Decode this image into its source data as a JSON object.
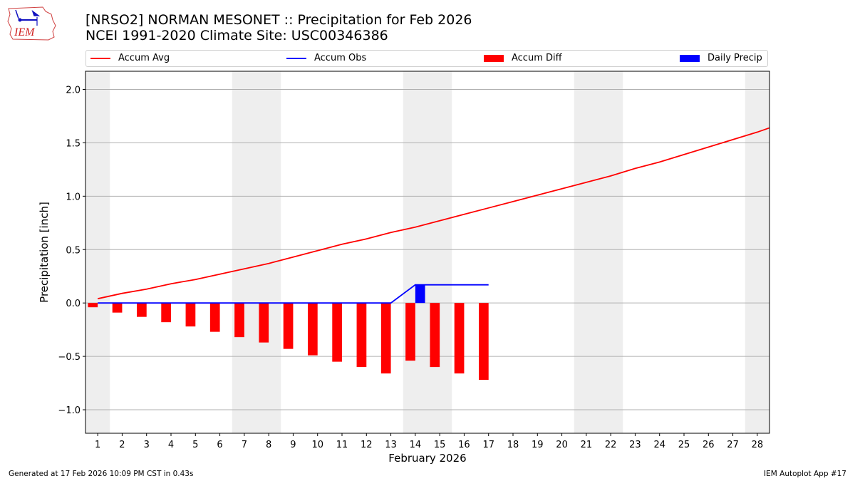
{
  "header": {
    "logo_text": "IEM",
    "title_line1": "[NRSO2] NORMAN MESONET :: Precipitation for Feb 2026",
    "title_line2": "NCEI 1991-2020 Climate Site: USC00346386"
  },
  "legend": {
    "items": [
      {
        "label": "Accum Avg",
        "type": "line",
        "color": "#ff0000"
      },
      {
        "label": "Accum Obs",
        "type": "line",
        "color": "#0000ff"
      },
      {
        "label": "Accum Diff",
        "type": "patch",
        "color": "#ff0000"
      },
      {
        "label": "Daily Precip",
        "type": "patch",
        "color": "#0000ff"
      }
    ]
  },
  "footer": {
    "generated": "Generated at 17 Feb 2026 10:09 PM CST in 0.43s",
    "app": "IEM Autoplot App #17"
  },
  "colors": {
    "avg": "#ff0000",
    "obs": "#0000ff",
    "diff": "#ff0000",
    "daily": "#0000ff",
    "weekend": "#eeeeee",
    "grid": "#b0b0b0"
  },
  "chart_data": {
    "type": "bar",
    "title": "[NRSO2] NORMAN MESONET :: Precipitation for Feb 2026",
    "subtitle": "NCEI 1991-2020 Climate Site: USC00346386",
    "xlabel": "February 2026",
    "ylabel": "Precipitation [inch]",
    "xlim": [
      0.5,
      28.5
    ],
    "ylim": [
      -1.22,
      2.17
    ],
    "yticks": [
      -1.0,
      -0.5,
      0.0,
      0.5,
      1.0,
      1.5,
      2.0
    ],
    "ytick_labels": [
      "−1.0",
      "−0.5",
      "0.0",
      "0.5",
      "1.0",
      "1.5",
      "2.0"
    ],
    "x": [
      1,
      2,
      3,
      4,
      5,
      6,
      7,
      8,
      9,
      10,
      11,
      12,
      13,
      14,
      15,
      16,
      17,
      18,
      19,
      20,
      21,
      22,
      23,
      24,
      25,
      26,
      27,
      28
    ],
    "grid": "y",
    "legend_position": "top",
    "weekend_spans": [
      [
        0.5,
        1.5
      ],
      [
        6.5,
        8.5
      ],
      [
        13.5,
        15.5
      ],
      [
        20.5,
        22.5
      ],
      [
        27.5,
        28.5
      ]
    ],
    "series": [
      {
        "name": "Accum Avg",
        "kind": "line",
        "x": [
          1,
          2,
          3,
          4,
          5,
          6,
          7,
          8,
          9,
          10,
          11,
          12,
          13,
          14,
          15,
          16,
          17,
          18,
          19,
          20,
          21,
          22,
          23,
          24,
          25,
          26,
          27,
          28,
          28.5
        ],
        "values": [
          0.04,
          0.09,
          0.13,
          0.18,
          0.22,
          0.27,
          0.32,
          0.37,
          0.43,
          0.49,
          0.55,
          0.6,
          0.66,
          0.71,
          0.77,
          0.83,
          0.89,
          0.95,
          1.01,
          1.07,
          1.13,
          1.19,
          1.26,
          1.32,
          1.39,
          1.46,
          1.53,
          1.6,
          1.64
        ]
      },
      {
        "name": "Accum Obs",
        "kind": "line",
        "x": [
          1,
          2,
          3,
          4,
          5,
          6,
          7,
          8,
          9,
          10,
          11,
          12,
          13,
          14,
          15,
          16,
          17
        ],
        "values": [
          0,
          0,
          0,
          0,
          0,
          0,
          0,
          0,
          0,
          0,
          0,
          0,
          0,
          0.17,
          0.17,
          0.17,
          0.17
        ]
      },
      {
        "name": "Accum Diff",
        "kind": "bar",
        "x": [
          1,
          2,
          3,
          4,
          5,
          6,
          7,
          8,
          9,
          10,
          11,
          12,
          13,
          14,
          15,
          16,
          17
        ],
        "values": [
          -0.04,
          -0.09,
          -0.13,
          -0.18,
          -0.22,
          -0.27,
          -0.32,
          -0.37,
          -0.43,
          -0.49,
          -0.55,
          -0.6,
          -0.66,
          -0.54,
          -0.6,
          -0.66,
          -0.72
        ]
      },
      {
        "name": "Daily Precip",
        "kind": "bar",
        "x": [
          14
        ],
        "values": [
          0.17
        ]
      }
    ]
  }
}
